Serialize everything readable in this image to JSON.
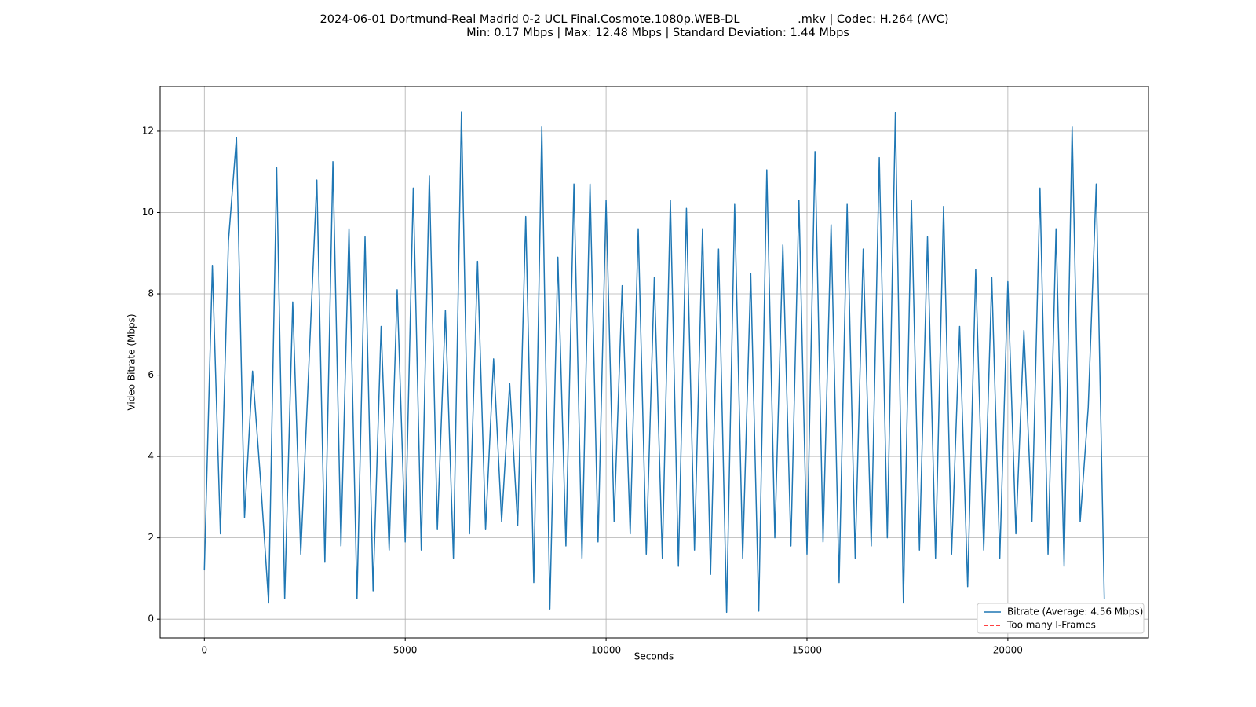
{
  "chart_data": {
    "type": "line",
    "title": "2024-06-01 Dortmund-Real Madrid 0-2 UCL Final.Cosmote.1080p.WEB-DL                .mkv | Codec: H.264 (AVC)",
    "subtitle": "Min: 0.17 Mbps | Max: 12.48 Mbps | Standard Deviation: 1.44 Mbps",
    "xlabel": "Seconds",
    "ylabel": "Video Bitrate (Mbps)",
    "x": [
      0,
      200,
      400,
      600,
      800,
      1000,
      1200,
      1400,
      1600,
      1800,
      2000,
      2200,
      2400,
      2600,
      2800,
      3000,
      3200,
      3400,
      3600,
      3800,
      4000,
      4200,
      4400,
      4600,
      4800,
      5000,
      5200,
      5400,
      5600,
      5800,
      6000,
      6200,
      6400,
      6600,
      6800,
      7000,
      7200,
      7400,
      7600,
      7800,
      8000,
      8200,
      8400,
      8600,
      8800,
      9000,
      9200,
      9400,
      9600,
      9800,
      10000,
      10200,
      10400,
      10600,
      10800,
      11000,
      11200,
      11400,
      11600,
      11800,
      12000,
      12200,
      12400,
      12600,
      12800,
      13000,
      13200,
      13400,
      13600,
      13800,
      14000,
      14200,
      14400,
      14600,
      14800,
      15000,
      15200,
      15400,
      15600,
      15800,
      16000,
      16200,
      16400,
      16600,
      16800,
      17000,
      17200,
      17400,
      17600,
      17800,
      18000,
      18200,
      18400,
      18600,
      18800,
      19000,
      19200,
      19400,
      19600,
      19800,
      20000,
      20200,
      20400,
      20600,
      20800,
      21000,
      21200,
      21400,
      21600,
      21800,
      22000,
      22200,
      22400
    ],
    "series": [
      {
        "name": "Bitrate (Average: 4.56 Mbps)",
        "color": "#1f77b4",
        "values": [
          1.2,
          8.7,
          2.1,
          9.3,
          11.85,
          2.5,
          6.1,
          3.4,
          0.4,
          11.1,
          0.5,
          7.8,
          1.6,
          6.2,
          10.8,
          1.4,
          11.25,
          1.8,
          9.6,
          0.5,
          9.4,
          0.7,
          7.2,
          1.7,
          8.1,
          1.9,
          10.6,
          1.7,
          10.9,
          2.2,
          7.6,
          1.5,
          12.48,
          2.1,
          8.8,
          2.2,
          6.4,
          2.4,
          5.8,
          2.3,
          9.9,
          0.9,
          12.1,
          0.25,
          8.9,
          1.8,
          10.7,
          1.5,
          10.7,
          1.9,
          10.3,
          2.4,
          8.2,
          2.1,
          9.6,
          1.6,
          8.4,
          1.5,
          10.3,
          1.3,
          10.1,
          1.7,
          9.6,
          1.1,
          9.1,
          0.17,
          10.2,
          1.5,
          8.5,
          0.2,
          11.05,
          2.0,
          9.2,
          1.8,
          10.3,
          1.6,
          11.5,
          1.9,
          9.7,
          0.9,
          10.2,
          1.5,
          9.1,
          1.8,
          11.35,
          2.0,
          12.45,
          0.4,
          10.3,
          1.7,
          9.4,
          1.5,
          10.15,
          1.6,
          7.2,
          0.8,
          8.6,
          1.7,
          8.4,
          1.5,
          8.3,
          2.1,
          7.1,
          2.4,
          10.6,
          1.6,
          9.6,
          1.3,
          12.1,
          2.4,
          5.2,
          10.7,
          0.5
        ]
      },
      {
        "name": "Too many I-Frames",
        "color": "#ff0000",
        "dash": true,
        "x": [],
        "values": []
      }
    ],
    "xlim": [
      -1100,
      23500
    ],
    "ylim": [
      -0.46,
      13.1
    ],
    "xticks": [
      0,
      5000,
      10000,
      15000,
      20000
    ],
    "yticks": [
      0,
      2,
      4,
      6,
      8,
      10,
      12
    ],
    "grid": true,
    "legend": "lower right"
  }
}
